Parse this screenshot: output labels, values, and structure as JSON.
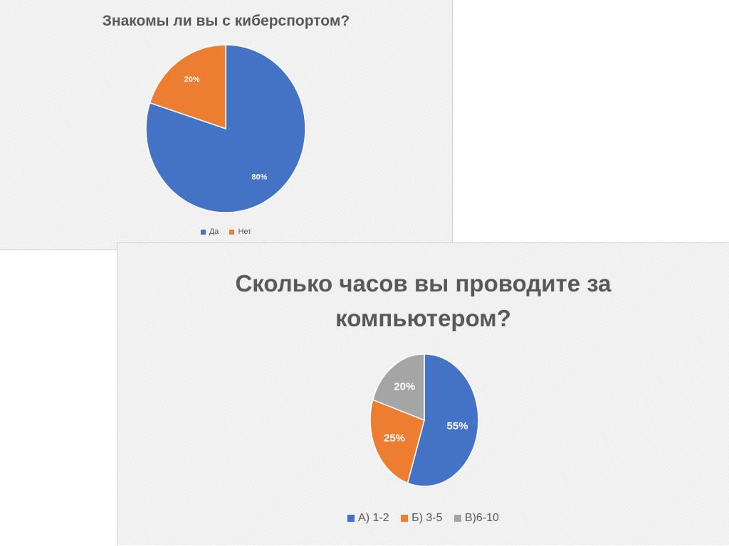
{
  "chart_data": [
    {
      "type": "pie",
      "title": "Знакомы ли вы с киберспортом?",
      "categories": [
        "Да",
        "Нет"
      ],
      "values": [
        80,
        20
      ],
      "labels": [
        "80%",
        "20%"
      ],
      "colors": [
        "#4472c4",
        "#ed7d31"
      ],
      "legend": "bottom"
    },
    {
      "type": "pie",
      "title": "Сколько часов вы проводите за компьютером?",
      "categories": [
        "А) 1-2",
        "Б) 3-5",
        "В)6-10"
      ],
      "values": [
        55,
        25,
        20
      ],
      "labels": [
        "55%",
        "25%",
        "20%"
      ],
      "colors": [
        "#4472c4",
        "#ed7d31",
        "#a5a5a5"
      ],
      "legend": "bottom"
    }
  ]
}
